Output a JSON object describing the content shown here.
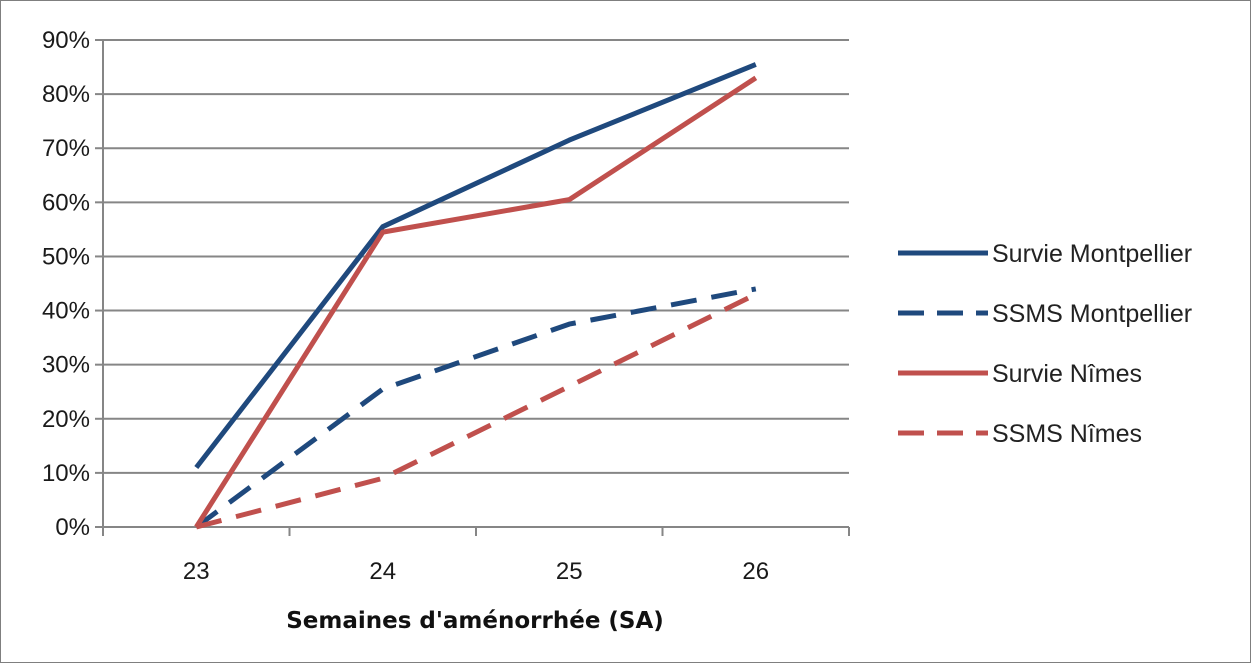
{
  "chart_data": {
    "type": "line",
    "title": "",
    "xlabel": "Semaines d'aménorrhée (SA)",
    "ylabel": "",
    "categories": [
      "23",
      "24",
      "25",
      "26"
    ],
    "ylim": [
      0,
      90
    ],
    "yticks": [
      "0%",
      "10%",
      "20%",
      "30%",
      "40%",
      "50%",
      "60%",
      "70%",
      "80%",
      "90%"
    ],
    "grid": true,
    "legend_position": "right",
    "series": [
      {
        "name": "Survie Montpellier",
        "values": [
          11,
          55.5,
          71.5,
          85.5
        ],
        "color": "#1f497d",
        "style": "solid"
      },
      {
        "name": "SSMS Montpellier",
        "values": [
          0,
          25.5,
          37.5,
          44
        ],
        "color": "#1f497d",
        "style": "dashed"
      },
      {
        "name": "Survie Nîmes",
        "values": [
          0,
          54.5,
          60.5,
          83
        ],
        "color": "#c0504d",
        "style": "solid"
      },
      {
        "name": "SSMS Nîmes",
        "values": [
          0,
          9,
          26,
          43
        ],
        "color": "#c0504d",
        "style": "dashed"
      }
    ]
  }
}
